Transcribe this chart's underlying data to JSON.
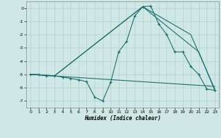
{
  "title": "",
  "xlabel": "Humidex (Indice chaleur)",
  "xlim": [
    -0.5,
    23.5
  ],
  "ylim": [
    -7.5,
    0.5
  ],
  "yticks": [
    0,
    -1,
    -2,
    -3,
    -4,
    -5,
    -6,
    -7
  ],
  "xticks": [
    0,
    1,
    2,
    3,
    4,
    5,
    6,
    7,
    8,
    9,
    10,
    11,
    12,
    13,
    14,
    15,
    16,
    17,
    18,
    19,
    20,
    21,
    22,
    23
  ],
  "bg_color": "#cfe8e6",
  "grid_color": "#afd0ce",
  "line_color": "#1a6b6b",
  "lines": [
    {
      "x": [
        0,
        1,
        2,
        3,
        4,
        5,
        6,
        7,
        8,
        9,
        10,
        11,
        12,
        13,
        14,
        15,
        16,
        17,
        18,
        19,
        20,
        21,
        22,
        23
      ],
      "y": [
        -5.0,
        -5.0,
        -5.1,
        -5.1,
        -5.2,
        -5.3,
        -5.4,
        -5.55,
        -6.7,
        -7.0,
        -5.6,
        -3.3,
        -2.5,
        -0.6,
        0.1,
        0.15,
        -1.2,
        -2.0,
        -3.3,
        -3.3,
        -4.4,
        -5.0,
        -6.1,
        -6.2
      ],
      "markers": true
    },
    {
      "x": [
        0,
        3,
        14,
        20,
        23
      ],
      "y": [
        -5.0,
        -5.1,
        0.1,
        -2.0,
        -6.1
      ],
      "markers": false
    },
    {
      "x": [
        0,
        3,
        14,
        21,
        23
      ],
      "y": [
        -5.0,
        -5.1,
        0.1,
        -3.3,
        -6.2
      ],
      "markers": false
    },
    {
      "x": [
        0,
        23
      ],
      "y": [
        -5.0,
        -5.9
      ],
      "markers": false
    }
  ]
}
